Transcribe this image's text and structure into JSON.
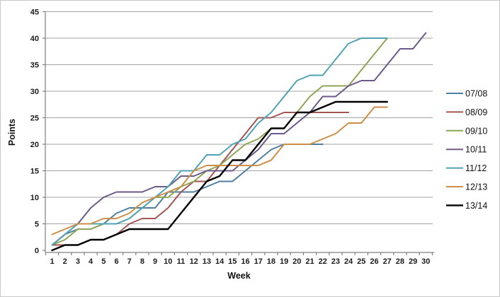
{
  "chart_data": {
    "type": "line",
    "title": "",
    "xlabel": "Week",
    "ylabel": "Points",
    "x": [
      1,
      2,
      3,
      4,
      5,
      6,
      7,
      8,
      9,
      10,
      11,
      12,
      13,
      14,
      15,
      16,
      17,
      18,
      19,
      20,
      21,
      22,
      23,
      24,
      25,
      26,
      27,
      28,
      29,
      30
    ],
    "x_tick_labels": [
      "1",
      "2",
      "3",
      "4",
      "5",
      "6",
      "7",
      "8",
      "9",
      "10",
      "11",
      "12",
      "13",
      "14",
      "15",
      "16",
      "17",
      "18",
      "19",
      "20",
      "21",
      "22",
      "23",
      "24",
      "25",
      "26",
      "27",
      "28",
      "29",
      "30"
    ],
    "y_ticks": [
      0,
      5,
      10,
      15,
      20,
      25,
      30,
      35,
      40,
      45
    ],
    "ylim": [
      0,
      45
    ],
    "grid": true,
    "legend_position": "right",
    "series": [
      {
        "name": "07/08",
        "color": "#4E7FA0",
        "stroke_width": 2,
        "values": [
          1,
          3,
          4,
          4,
          5,
          7,
          8,
          8,
          8,
          11,
          11,
          11,
          12,
          13,
          13,
          15,
          17,
          19,
          20,
          20,
          20,
          20
        ]
      },
      {
        "name": "08/09",
        "color": "#A25551",
        "stroke_width": 2,
        "values": [
          1,
          1,
          1,
          2,
          2,
          3,
          5,
          6,
          6,
          8,
          11,
          13,
          13,
          16,
          19,
          22,
          25,
          25,
          26,
          26,
          26,
          26,
          26,
          26
        ]
      },
      {
        "name": "09/10",
        "color": "#8FA556",
        "stroke_width": 2,
        "values": [
          1,
          2,
          4,
          4,
          5,
          5,
          6,
          8,
          10,
          10,
          12,
          13,
          15,
          16,
          18,
          20,
          21,
          23,
          23,
          26,
          29,
          31,
          31,
          31,
          34,
          37,
          40
        ]
      },
      {
        "name": "10/11",
        "color": "#6C5A8A",
        "stroke_width": 2,
        "values": [
          1,
          3,
          5,
          8,
          10,
          11,
          11,
          11,
          12,
          12,
          14,
          14,
          15,
          15,
          15,
          17,
          19,
          22,
          22,
          24,
          26,
          29,
          29,
          31,
          32,
          32,
          35,
          38,
          38,
          41
        ]
      },
      {
        "name": "11/12",
        "color": "#4FA3B5",
        "stroke_width": 2,
        "values": [
          1,
          3,
          5,
          5,
          5,
          5,
          6,
          8,
          10,
          12,
          15,
          15,
          18,
          18,
          20,
          21,
          24,
          26,
          29,
          32,
          33,
          33,
          36,
          39,
          40,
          40,
          40
        ]
      },
      {
        "name": "12/13",
        "color": "#CE8E45",
        "stroke_width": 2,
        "values": [
          3,
          4,
          5,
          5,
          6,
          6,
          7,
          9,
          10,
          11,
          12,
          15,
          16,
          16,
          16,
          16,
          16,
          17,
          20,
          20,
          20,
          21,
          22,
          24,
          24,
          27,
          27
        ]
      },
      {
        "name": "13/14",
        "color": "#000000",
        "stroke_width": 2.4,
        "values": [
          0,
          1,
          1,
          2,
          2,
          3,
          4,
          4,
          4,
          4,
          7,
          10,
          13,
          14,
          17,
          17,
          20,
          23,
          23,
          26,
          26,
          27,
          28,
          28,
          28,
          28,
          28
        ]
      }
    ]
  },
  "colors": {
    "background": "#ffffff",
    "gridline": "#a3a3a3",
    "axis": "#808080",
    "tick_text": "#1a1a1a",
    "border": "#c9c9c9"
  }
}
